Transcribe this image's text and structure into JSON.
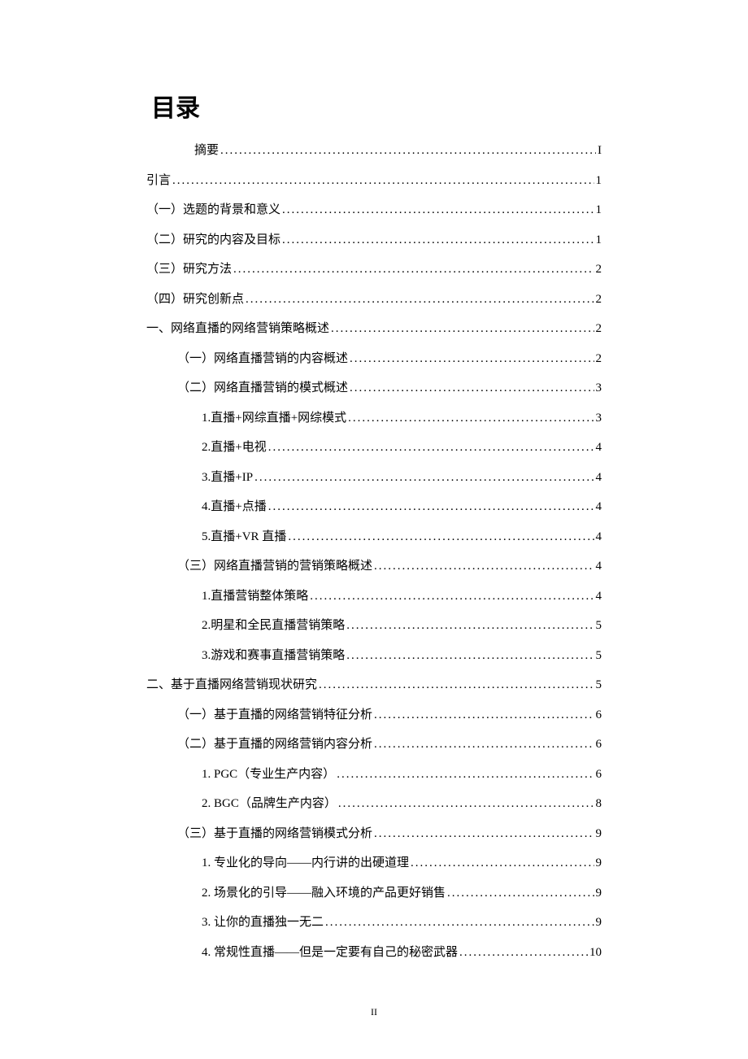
{
  "heading": "目录",
  "page_number": "II",
  "entries": [
    {
      "indent": 1,
      "label": "摘要",
      "page": "I"
    },
    {
      "indent": 0,
      "label": "引言",
      "page": "1"
    },
    {
      "indent": 0,
      "label": "（一）选题的背景和意义",
      "page": "1"
    },
    {
      "indent": 0,
      "label": "（二）研究的内容及目标",
      "page": "1"
    },
    {
      "indent": 0,
      "label": "（三）研究方法",
      "page": "2"
    },
    {
      "indent": 0,
      "label": "（四）研究创新点",
      "page": "2"
    },
    {
      "indent": 0,
      "label": "一、网络直播的网络营销策略概述",
      "page": "2"
    },
    {
      "indent": 2,
      "label": "（一）网络直播营销的内容概述",
      "page": "2"
    },
    {
      "indent": 2,
      "label": "（二）网络直播营销的模式概述",
      "page": "3"
    },
    {
      "indent": 3,
      "label": "1.直播+网综直播+网综模式",
      "page": "3"
    },
    {
      "indent": 3,
      "label": "2.直播+电视",
      "page": "4"
    },
    {
      "indent": 3,
      "label": "3.直播+IP",
      "page": "4"
    },
    {
      "indent": 3,
      "label": "4.直播+点播",
      "page": "4"
    },
    {
      "indent": 3,
      "label": "5.直播+VR 直播",
      "page": "4"
    },
    {
      "indent": 2,
      "label": "（三）网络直播营销的营销策略概述",
      "page": "4"
    },
    {
      "indent": 3,
      "label": "1.直播营销整体策略",
      "page": "4"
    },
    {
      "indent": 3,
      "label": "2.明星和全民直播营销策略",
      "page": "5"
    },
    {
      "indent": 3,
      "label": "3.游戏和赛事直播营销策略",
      "page": "5"
    },
    {
      "indent": 0,
      "label": "二、基于直播网络营销现状研究",
      "page": "5"
    },
    {
      "indent": 2,
      "label": "（一）基于直播的网络营销特征分析",
      "page": "6"
    },
    {
      "indent": 2,
      "label": "（二）基于直播的网络营销内容分析",
      "page": "6"
    },
    {
      "indent": 3,
      "label": "1. PGC（专业生产内容）",
      "page": "6"
    },
    {
      "indent": 3,
      "label": "2. BGC（品牌生产内容）",
      "page": "8"
    },
    {
      "indent": 2,
      "label": "（三）基于直播的网络营销模式分析",
      "page": "9"
    },
    {
      "indent": 3,
      "label": "1. 专业化的导向——内行讲的出硬道理",
      "page": "9"
    },
    {
      "indent": 3,
      "label": "2. 场景化的引导——融入环境的产品更好销售",
      "page": "9"
    },
    {
      "indent": 3,
      "label": "3. 让你的直播独一无二",
      "page": "9"
    },
    {
      "indent": 3,
      "label": "4. 常规性直播——但是一定要有自己的秘密武器",
      "page": "10"
    }
  ]
}
